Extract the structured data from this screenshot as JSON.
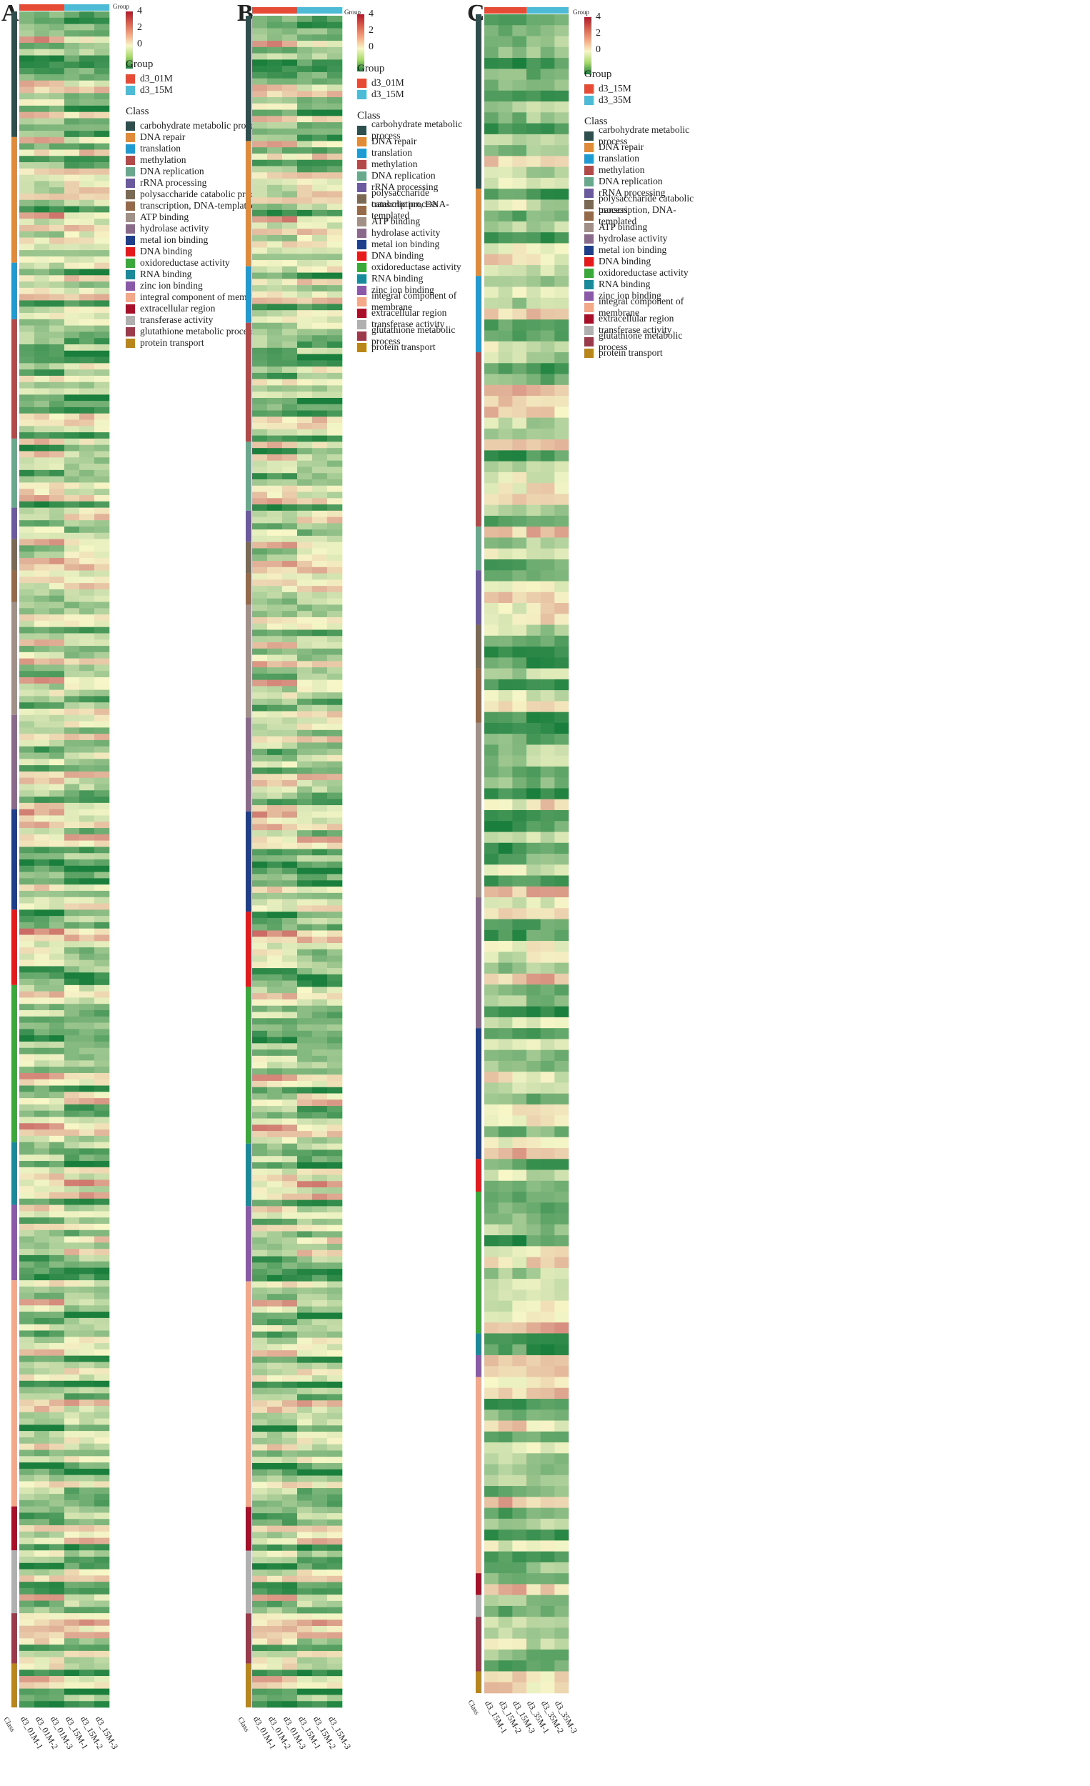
{
  "palette": {
    "classes": {
      "carbohydrate metabolic process": "#2f4f4f",
      "DNA repair": "#e08b3a",
      "translation": "#1f9bd1",
      "methylation": "#b24a4a",
      "DNA replication": "#6aa88e",
      "rRNA processing": "#6b5a9e",
      "polysaccharide catabolic process": "#7a6a55",
      "transcription, DNA-templated": "#946a4a",
      "ATP binding": "#a09088",
      "hydrolase activity": "#8a6a8a",
      "metal ion binding": "#1f3f8a",
      "DNA binding": "#e41a1c",
      "oxidoreductase activity": "#3aa83a",
      "RNA binding": "#1a8a9a",
      "zinc ion binding": "#8a5aa8",
      "integral component of membrane": "#f4a88a",
      "extracellular region": "#a8102a",
      "transferase activity": "#b0b0b0",
      "glutathione metabolic process": "#9a3a4a",
      "protein transport": "#b8861b"
    },
    "group_a": "#e64b35",
    "group_b": "#4dbbd5",
    "heat_low": "#1a7f3c",
    "heat_mid": "#f7f7c8",
    "heat_high": "#b2182b"
  },
  "chart_data": [
    {
      "type": "heatmap",
      "panel_label": "A",
      "annotation_title": "Group",
      "column_axis_label": "Class",
      "columns": [
        "d3_01M-1",
        "d3_01M-2",
        "d3_01M-3",
        "d3_15M-1",
        "d3_15M-2",
        "d3_15M-3"
      ],
      "groups": [
        {
          "name": "d3_01M",
          "columns": [
            0,
            1,
            2
          ]
        },
        {
          "name": "d3_15M",
          "columns": [
            3,
            4,
            5
          ]
        }
      ],
      "color_scale": {
        "ticks": [
          4,
          2,
          0
        ]
      },
      "legend_group_title": "Group",
      "legend_class_title": "Class",
      "class_legend": [
        "carbohydrate metabolic process",
        "DNA repair",
        "translation",
        "methylation",
        "DNA replication",
        "rRNA processing",
        "polysaccharide catabolic process",
        "transcription, DNA-templated",
        "ATP binding",
        "hydrolase activity",
        "metal ion binding",
        "DNA binding",
        "oxidoreductase activity",
        "RNA binding",
        "zinc ion binding",
        "integral component of membrane",
        "extracellular region",
        "transferase activity",
        "glutathione metabolic process",
        "protein transport"
      ],
      "row_classes": [
        [
          "carbohydrate metabolic process",
          20
        ],
        [
          "DNA repair",
          20
        ],
        [
          "translation",
          9
        ],
        [
          "methylation",
          19
        ],
        [
          "DNA replication",
          11
        ],
        [
          "rRNA processing",
          5
        ],
        [
          "polysaccharide catabolic process",
          5
        ],
        [
          "transcription, DNA-templated",
          5
        ],
        [
          "ATP binding",
          18
        ],
        [
          "hydrolase activity",
          15
        ],
        [
          "metal ion binding",
          16
        ],
        [
          "DNA binding",
          12
        ],
        [
          "oxidoreductase activity",
          25
        ],
        [
          "RNA binding",
          10
        ],
        [
          "zinc ion binding",
          12
        ],
        [
          "integral component of membrane",
          36
        ],
        [
          "extracellular region",
          7
        ],
        [
          "transferase activity",
          10
        ],
        [
          "glutathione metabolic process",
          8
        ],
        [
          "protein transport",
          7
        ]
      ],
      "pattern": "contrast",
      "seed": 11
    },
    {
      "type": "heatmap",
      "panel_label": "B",
      "annotation_title": "Group",
      "column_axis_label": "Class",
      "columns": [
        "d3_01M-1",
        "d3_01M-2",
        "d3_01M-3",
        "d3_15M-1",
        "d3_15M-2",
        "d3_15M-3"
      ],
      "groups": [
        {
          "name": "d3_01M",
          "columns": [
            0,
            1,
            2
          ]
        },
        {
          "name": "d3_15M",
          "columns": [
            3,
            4,
            5
          ]
        }
      ],
      "color_scale": {
        "ticks": [
          4,
          2,
          0
        ]
      },
      "legend_group_title": "Group",
      "legend_class_title": "Class",
      "class_legend": [
        "carbohydrate metabolic process",
        "DNA repair",
        "translation",
        "methylation",
        "DNA replication",
        "rRNA processing",
        "polysaccharide catabolic process",
        "transcription, DNA-templated",
        "ATP binding",
        "hydrolase activity",
        "metal ion binding",
        "DNA binding",
        "oxidoreductase activity",
        "RNA binding",
        "zinc ion binding",
        "integral component of membrane",
        "extracellular region",
        "transferase activity",
        "glutathione metabolic process",
        "protein transport"
      ],
      "row_classes": [
        [
          "carbohydrate metabolic process",
          20
        ],
        [
          "DNA repair",
          20
        ],
        [
          "translation",
          9
        ],
        [
          "methylation",
          19
        ],
        [
          "DNA replication",
          11
        ],
        [
          "rRNA processing",
          5
        ],
        [
          "polysaccharide catabolic process",
          5
        ],
        [
          "transcription, DNA-templated",
          5
        ],
        [
          "ATP binding",
          18
        ],
        [
          "hydrolase activity",
          15
        ],
        [
          "metal ion binding",
          16
        ],
        [
          "DNA binding",
          12
        ],
        [
          "oxidoreductase activity",
          25
        ],
        [
          "RNA binding",
          10
        ],
        [
          "zinc ion binding",
          12
        ],
        [
          "integral component of membrane",
          36
        ],
        [
          "extracellular region",
          7
        ],
        [
          "transferase activity",
          10
        ],
        [
          "glutathione metabolic process",
          8
        ],
        [
          "protein transport",
          7
        ]
      ],
      "pattern": "contrast",
      "seed": 11
    },
    {
      "type": "heatmap",
      "panel_label": "C",
      "annotation_title": "Group",
      "column_axis_label": "Class",
      "columns": [
        "d3_15M-1",
        "d3_15M-2",
        "d3_15M-3",
        "d3_35M-1",
        "d3_35M-2",
        "d3_35M-3"
      ],
      "groups": [
        {
          "name": "d3_15M",
          "columns": [
            0,
            1,
            2
          ]
        },
        {
          "name": "d3_35M",
          "columns": [
            3,
            4,
            5
          ]
        }
      ],
      "color_scale": {
        "ticks": [
          4,
          2,
          0
        ]
      },
      "legend_group_title": "Group",
      "legend_class_title": "Class",
      "class_legend": [
        "carbohydrate metabolic process",
        "DNA repair",
        "translation",
        "methylation",
        "DNA replication",
        "rRNA processing",
        "polysaccharide catabolic process",
        "transcription, DNA-templated",
        "ATP binding",
        "hydrolase activity",
        "metal ion binding",
        "DNA binding",
        "oxidoreductase activity",
        "RNA binding",
        "zinc ion binding",
        "integral component of membrane",
        "extracellular region",
        "transferase activity",
        "glutathione metabolic process",
        "protein transport"
      ],
      "row_classes": [
        [
          "carbohydrate metabolic process",
          16
        ],
        [
          "DNA repair",
          8
        ],
        [
          "translation",
          7
        ],
        [
          "methylation",
          16
        ],
        [
          "DNA replication",
          4
        ],
        [
          "rRNA processing",
          5
        ],
        [
          "polysaccharide catabolic process",
          4
        ],
        [
          "transcription, DNA-templated",
          5
        ],
        [
          "ATP binding",
          16
        ],
        [
          "hydrolase activity",
          12
        ],
        [
          "metal ion binding",
          12
        ],
        [
          "DNA binding",
          3
        ],
        [
          "oxidoreductase activity",
          13
        ],
        [
          "RNA binding",
          2
        ],
        [
          "zinc ion binding",
          2
        ],
        [
          "integral component of membrane",
          18
        ],
        [
          "extracellular region",
          2
        ],
        [
          "transferase activity",
          2
        ],
        [
          "glutathione metabolic process",
          5
        ],
        [
          "protein transport",
          2
        ]
      ],
      "pattern": "mild",
      "seed": 37
    }
  ]
}
